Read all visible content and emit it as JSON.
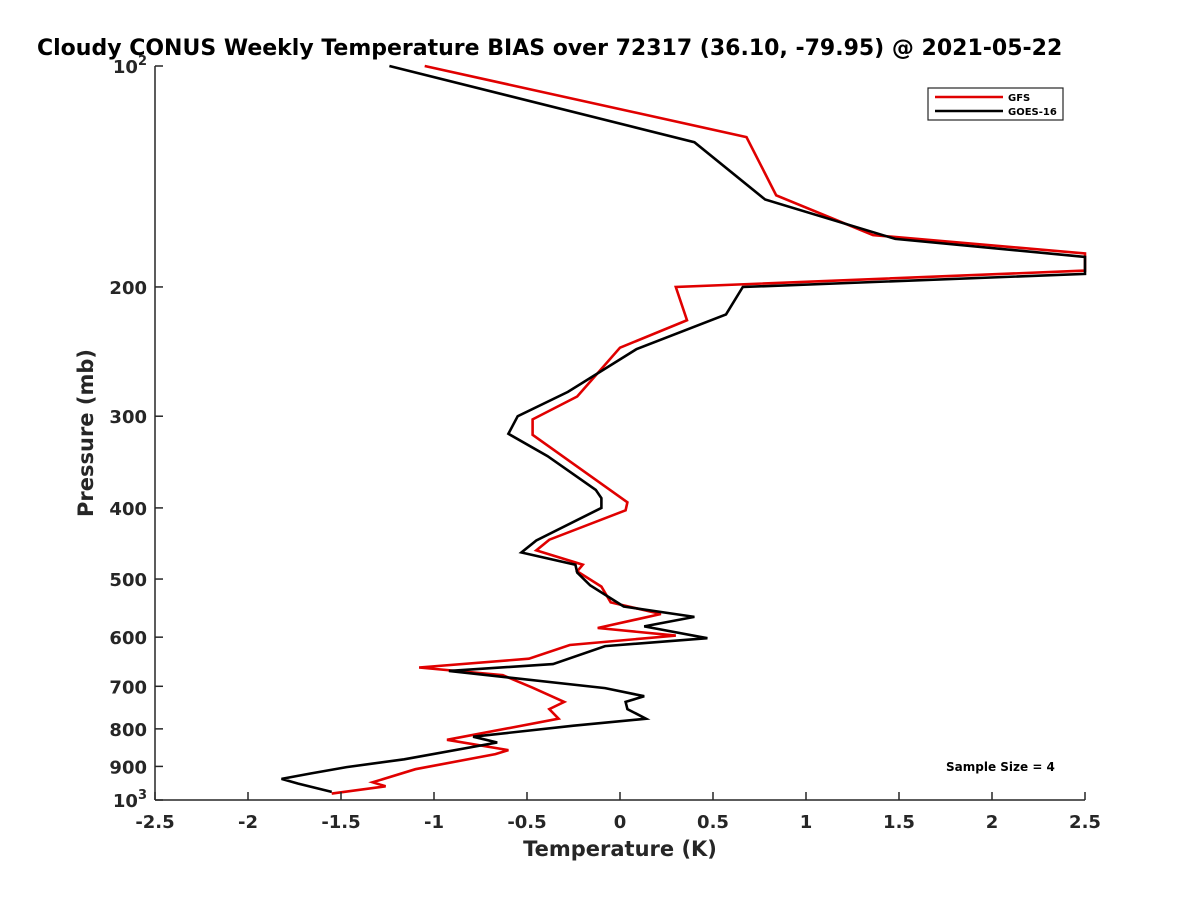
{
  "chart_data": {
    "type": "line",
    "title": "Cloudy CONUS Weekly Temperature BIAS over 72317 (36.10, -79.95) @ 2021-05-22",
    "xlabel": "Temperature (K)",
    "ylabel": "Pressure (mb)",
    "xlim": [
      -2.5,
      2.5
    ],
    "ylim": [
      100,
      1000
    ],
    "y_scale": "log",
    "y_reversed": true,
    "grid": false,
    "legend_position": "top-right",
    "annotation": "Sample Size = 4",
    "x_ticks": [
      "-2.5",
      "-2",
      "-1.5",
      "-1",
      "-0.5",
      "0",
      "0.5",
      "1",
      "1.5",
      "2",
      "2.5"
    ],
    "y_ticks": [
      {
        "value": 100,
        "base": "10",
        "exp": "2"
      },
      {
        "value": 200,
        "label": "200"
      },
      {
        "value": 300,
        "label": "300"
      },
      {
        "value": 400,
        "label": "400"
      },
      {
        "value": 500,
        "label": "500"
      },
      {
        "value": 600,
        "label": "600"
      },
      {
        "value": 700,
        "label": "700"
      },
      {
        "value": 800,
        "label": "800"
      },
      {
        "value": 900,
        "label": "900"
      },
      {
        "value": 1000,
        "base": "10",
        "exp": "3"
      }
    ],
    "series": [
      {
        "name": "GFS",
        "color": "#e00000",
        "points": [
          [
            -1.05,
            100
          ],
          [
            0.68,
            125
          ],
          [
            0.84,
            150
          ],
          [
            1.36,
            170
          ],
          [
            2.5,
            180
          ],
          [
            2.5,
            190
          ],
          [
            0.3,
            200
          ],
          [
            0.36,
            222
          ],
          [
            0.0,
            242
          ],
          [
            -0.23,
            282
          ],
          [
            -0.47,
            303
          ],
          [
            -0.47,
            318
          ],
          [
            -0.24,
            350
          ],
          [
            0.04,
            393
          ],
          [
            0.03,
            403
          ],
          [
            -0.38,
            442
          ],
          [
            -0.45,
            457
          ],
          [
            -0.2,
            478
          ],
          [
            -0.23,
            488
          ],
          [
            -0.1,
            512
          ],
          [
            -0.05,
            538
          ],
          [
            0.22,
            558
          ],
          [
            -0.12,
            583
          ],
          [
            0.3,
            597
          ],
          [
            -0.27,
            615
          ],
          [
            -0.49,
            642
          ],
          [
            -1.08,
            660
          ],
          [
            -0.63,
            676
          ],
          [
            -0.47,
            703
          ],
          [
            -0.3,
            735
          ],
          [
            -0.38,
            752
          ],
          [
            -0.33,
            775
          ],
          [
            -0.93,
            828
          ],
          [
            -0.6,
            855
          ],
          [
            -0.67,
            866
          ],
          [
            -1.1,
            908
          ],
          [
            -1.33,
            946
          ],
          [
            -1.26,
            958
          ],
          [
            -1.55,
            980
          ]
        ]
      },
      {
        "name": "GOES-16",
        "color": "#000000",
        "points": [
          [
            -1.24,
            100
          ],
          [
            0.4,
            127
          ],
          [
            0.78,
            152
          ],
          [
            1.48,
            172
          ],
          [
            2.5,
            182
          ],
          [
            2.5,
            192
          ],
          [
            0.66,
            200
          ],
          [
            0.57,
            218
          ],
          [
            0.09,
            243
          ],
          [
            -0.28,
            278
          ],
          [
            -0.55,
            300
          ],
          [
            -0.6,
            317
          ],
          [
            -0.39,
            340
          ],
          [
            -0.13,
            378
          ],
          [
            -0.1,
            388
          ],
          [
            -0.1,
            400
          ],
          [
            -0.45,
            443
          ],
          [
            -0.53,
            460
          ],
          [
            -0.24,
            478
          ],
          [
            -0.23,
            490
          ],
          [
            -0.16,
            510
          ],
          [
            0.02,
            545
          ],
          [
            0.4,
            563
          ],
          [
            0.13,
            580
          ],
          [
            0.47,
            602
          ],
          [
            -0.08,
            617
          ],
          [
            -0.36,
            653
          ],
          [
            -0.92,
            667
          ],
          [
            -0.08,
            704
          ],
          [
            0.13,
            722
          ],
          [
            0.03,
            735
          ],
          [
            0.04,
            752
          ],
          [
            0.14,
            775
          ],
          [
            -0.25,
            792
          ],
          [
            -0.79,
            820
          ],
          [
            -0.66,
            835
          ],
          [
            -1.16,
            880
          ],
          [
            -1.47,
            902
          ],
          [
            -1.66,
            920
          ],
          [
            -1.82,
            936
          ],
          [
            -1.73,
            950
          ],
          [
            -1.55,
            975
          ]
        ]
      }
    ]
  }
}
